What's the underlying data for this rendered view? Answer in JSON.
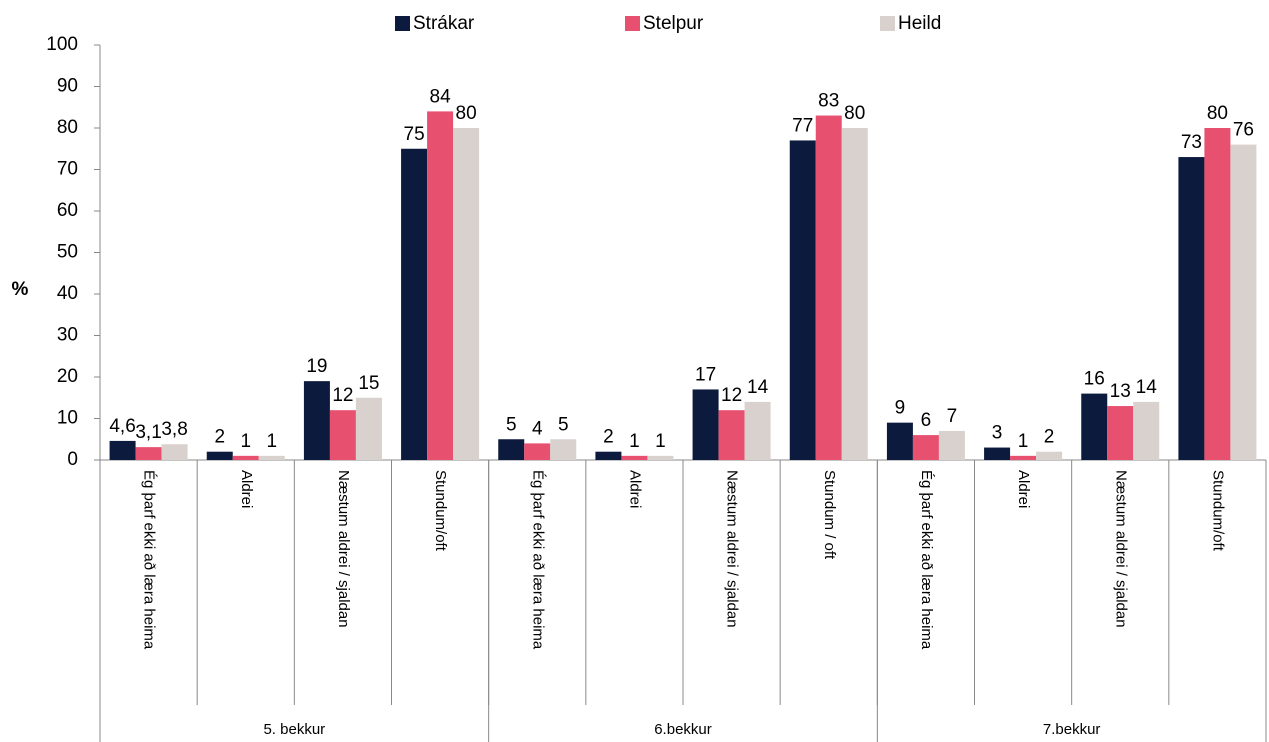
{
  "chart_data": {
    "type": "bar",
    "y_label": "%",
    "groups": [
      "5. bekkur",
      "6.bekkur",
      "7.bekkur"
    ],
    "categories": [
      "Ég þarf ekki að læra heima",
      "Aldrei",
      "Næstum aldrei / sjaldan",
      "Stundum/oft",
      "Ég þarf ekki að læra heima",
      "Aldrei",
      "Næstum aldrei / sjaldan",
      "Stundum / oft",
      "Ég þarf ekki að læra heima",
      "Aldrei",
      "Næstum aldrei / sjaldan",
      "Stundum/oft"
    ],
    "series": [
      {
        "name": "Strákar",
        "color": "#0c1a3d",
        "values": [
          4.6,
          2,
          19,
          75,
          5,
          2,
          17,
          77,
          9,
          3,
          16,
          73
        ],
        "value_labels": [
          "4,6",
          "2",
          "19",
          "75",
          "5",
          "2",
          "17",
          "77",
          "9",
          "3",
          "16",
          "73"
        ]
      },
      {
        "name": "Stelpur",
        "color": "#e8506f",
        "values": [
          3.1,
          1,
          12,
          84,
          4,
          1,
          12,
          83,
          6,
          1,
          13,
          80
        ],
        "value_labels": [
          "3,1",
          "1",
          "12",
          "84",
          "4",
          "1",
          "12",
          "83",
          "6",
          "1",
          "13",
          "80"
        ]
      },
      {
        "name": "Heild",
        "color": "#d9d1cd",
        "values": [
          3.8,
          1,
          15,
          80,
          5,
          1,
          14,
          80,
          7,
          2,
          14,
          76
        ],
        "value_labels": [
          "3,8",
          "1",
          "15",
          "80",
          "5",
          "1",
          "14",
          "80",
          "7",
          "2",
          "14",
          "76"
        ]
      }
    ],
    "ylim": [
      0,
      100
    ],
    "yticks": [
      0,
      10,
      20,
      30,
      40,
      50,
      60,
      70,
      80,
      90,
      100
    ],
    "grid": false
  }
}
